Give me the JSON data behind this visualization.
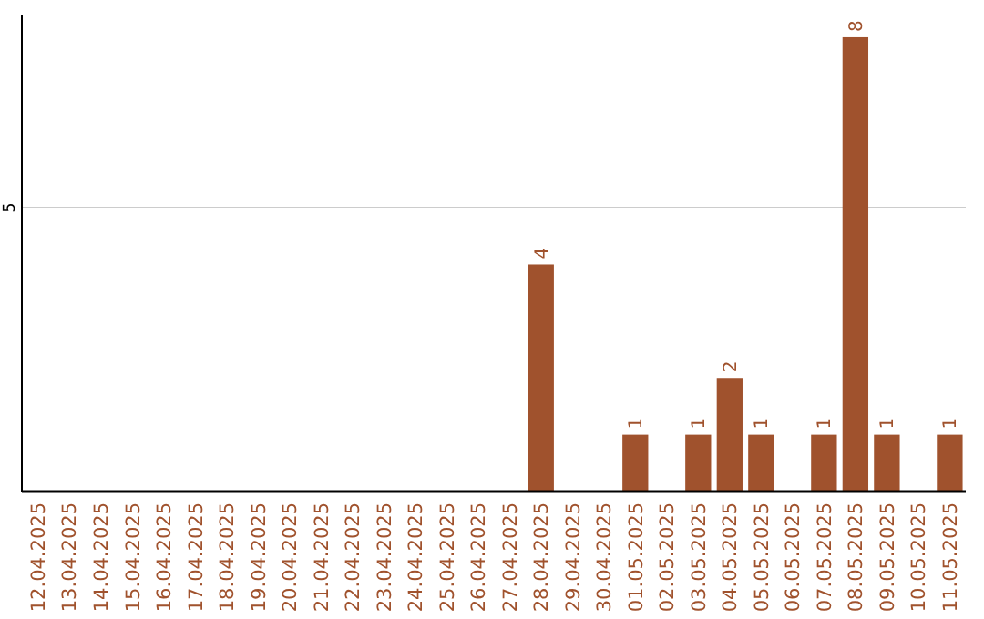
{
  "chart_data": {
    "type": "bar",
    "ylim": [
      0,
      8.4
    ],
    "categories": [
      "12.04.2025",
      "13.04.2025",
      "14.04.2025",
      "15.04.2025",
      "16.04.2025",
      "17.04.2025",
      "18.04.2025",
      "19.04.2025",
      "20.04.2025",
      "21.04.2025",
      "22.04.2025",
      "23.04.2025",
      "24.04.2025",
      "25.04.2025",
      "26.04.2025",
      "27.04.2025",
      "28.04.2025",
      "29.04.2025",
      "30.04.2025",
      "01.05.2025",
      "02.05.2025",
      "03.05.2025",
      "04.05.2025",
      "05.05.2025",
      "06.05.2025",
      "07.05.2025",
      "08.05.2025",
      "09.05.2025",
      "10.05.2025",
      "11.05.2025"
    ],
    "values": [
      null,
      null,
      null,
      null,
      null,
      null,
      null,
      null,
      null,
      null,
      null,
      null,
      null,
      null,
      null,
      null,
      4,
      null,
      null,
      1,
      null,
      1,
      2,
      1,
      null,
      1,
      8,
      1,
      null,
      1
    ],
    "data_labels": true,
    "color": "#a0522d",
    "ref_lines": [
      {
        "axis": "y",
        "value": 5,
        "label": "5",
        "color": "#cccccc"
      }
    ]
  }
}
